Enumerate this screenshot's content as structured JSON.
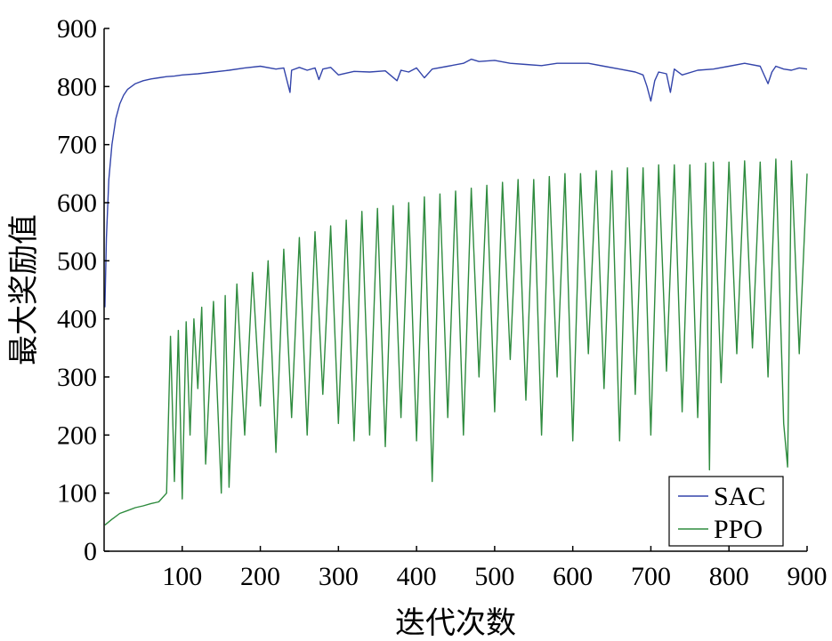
{
  "chart_data": {
    "type": "line",
    "xlabel": "迭代次数",
    "ylabel": "最大奖励值",
    "xlim": [
      0,
      900
    ],
    "ylim": [
      0,
      900
    ],
    "x_ticks": [
      100,
      200,
      300,
      400,
      500,
      600,
      700,
      800,
      900
    ],
    "y_ticks": [
      0,
      100,
      200,
      300,
      400,
      500,
      600,
      700,
      800,
      900
    ],
    "grid": false,
    "legend_position": "bottom-right",
    "series": [
      {
        "name": "SAC",
        "color": "#3344aa",
        "x": [
          1,
          3,
          6,
          10,
          15,
          20,
          25,
          30,
          40,
          50,
          60,
          70,
          80,
          90,
          100,
          120,
          140,
          160,
          180,
          200,
          220,
          230,
          238,
          240,
          250,
          260,
          270,
          275,
          280,
          290,
          300,
          320,
          340,
          360,
          375,
          380,
          390,
          400,
          410,
          420,
          440,
          460,
          470,
          480,
          500,
          520,
          540,
          560,
          580,
          600,
          620,
          640,
          660,
          680,
          690,
          695,
          700,
          705,
          710,
          720,
          725,
          730,
          740,
          760,
          780,
          800,
          820,
          840,
          850,
          855,
          860,
          870,
          880,
          890,
          900
        ],
        "y": [
          420,
          540,
          640,
          700,
          745,
          770,
          785,
          795,
          805,
          810,
          813,
          815,
          817,
          818,
          820,
          822,
          825,
          828,
          832,
          835,
          830,
          832,
          790,
          828,
          833,
          828,
          832,
          812,
          830,
          833,
          820,
          826,
          825,
          827,
          810,
          828,
          825,
          832,
          815,
          830,
          835,
          840,
          847,
          843,
          845,
          840,
          838,
          836,
          840,
          840,
          840,
          835,
          830,
          825,
          820,
          800,
          775,
          810,
          825,
          822,
          790,
          830,
          820,
          828,
          830,
          835,
          840,
          835,
          805,
          825,
          835,
          830,
          828,
          832,
          830
        ]
      },
      {
        "name": "PPO",
        "color": "#2e8b3e",
        "x": [
          1,
          10,
          20,
          30,
          40,
          50,
          60,
          70,
          80,
          85,
          90,
          95,
          100,
          105,
          110,
          115,
          120,
          125,
          130,
          140,
          150,
          155,
          160,
          170,
          180,
          190,
          200,
          210,
          220,
          230,
          240,
          250,
          260,
          270,
          280,
          290,
          300,
          310,
          320,
          330,
          340,
          350,
          360,
          370,
          380,
          390,
          400,
          410,
          420,
          430,
          440,
          450,
          460,
          470,
          480,
          490,
          500,
          510,
          520,
          530,
          540,
          550,
          560,
          570,
          580,
          590,
          600,
          610,
          620,
          630,
          640,
          650,
          660,
          670,
          680,
          690,
          700,
          710,
          720,
          730,
          740,
          750,
          760,
          770,
          775,
          780,
          790,
          800,
          810,
          820,
          830,
          840,
          850,
          860,
          870,
          875,
          880,
          890,
          900
        ],
        "y": [
          45,
          55,
          65,
          70,
          75,
          78,
          82,
          85,
          100,
          370,
          120,
          380,
          90,
          395,
          200,
          400,
          280,
          420,
          150,
          430,
          100,
          440,
          110,
          460,
          200,
          480,
          250,
          500,
          170,
          520,
          230,
          540,
          200,
          550,
          270,
          560,
          220,
          570,
          190,
          585,
          200,
          590,
          180,
          595,
          230,
          600,
          190,
          610,
          120,
          615,
          230,
          620,
          200,
          625,
          300,
          630,
          240,
          635,
          330,
          640,
          260,
          640,
          200,
          645,
          300,
          650,
          190,
          650,
          340,
          655,
          280,
          655,
          190,
          660,
          270,
          660,
          200,
          665,
          310,
          665,
          240,
          665,
          230,
          668,
          140,
          670,
          290,
          670,
          340,
          672,
          350,
          670,
          300,
          675,
          220,
          145,
          672,
          340,
          650
        ]
      }
    ]
  }
}
